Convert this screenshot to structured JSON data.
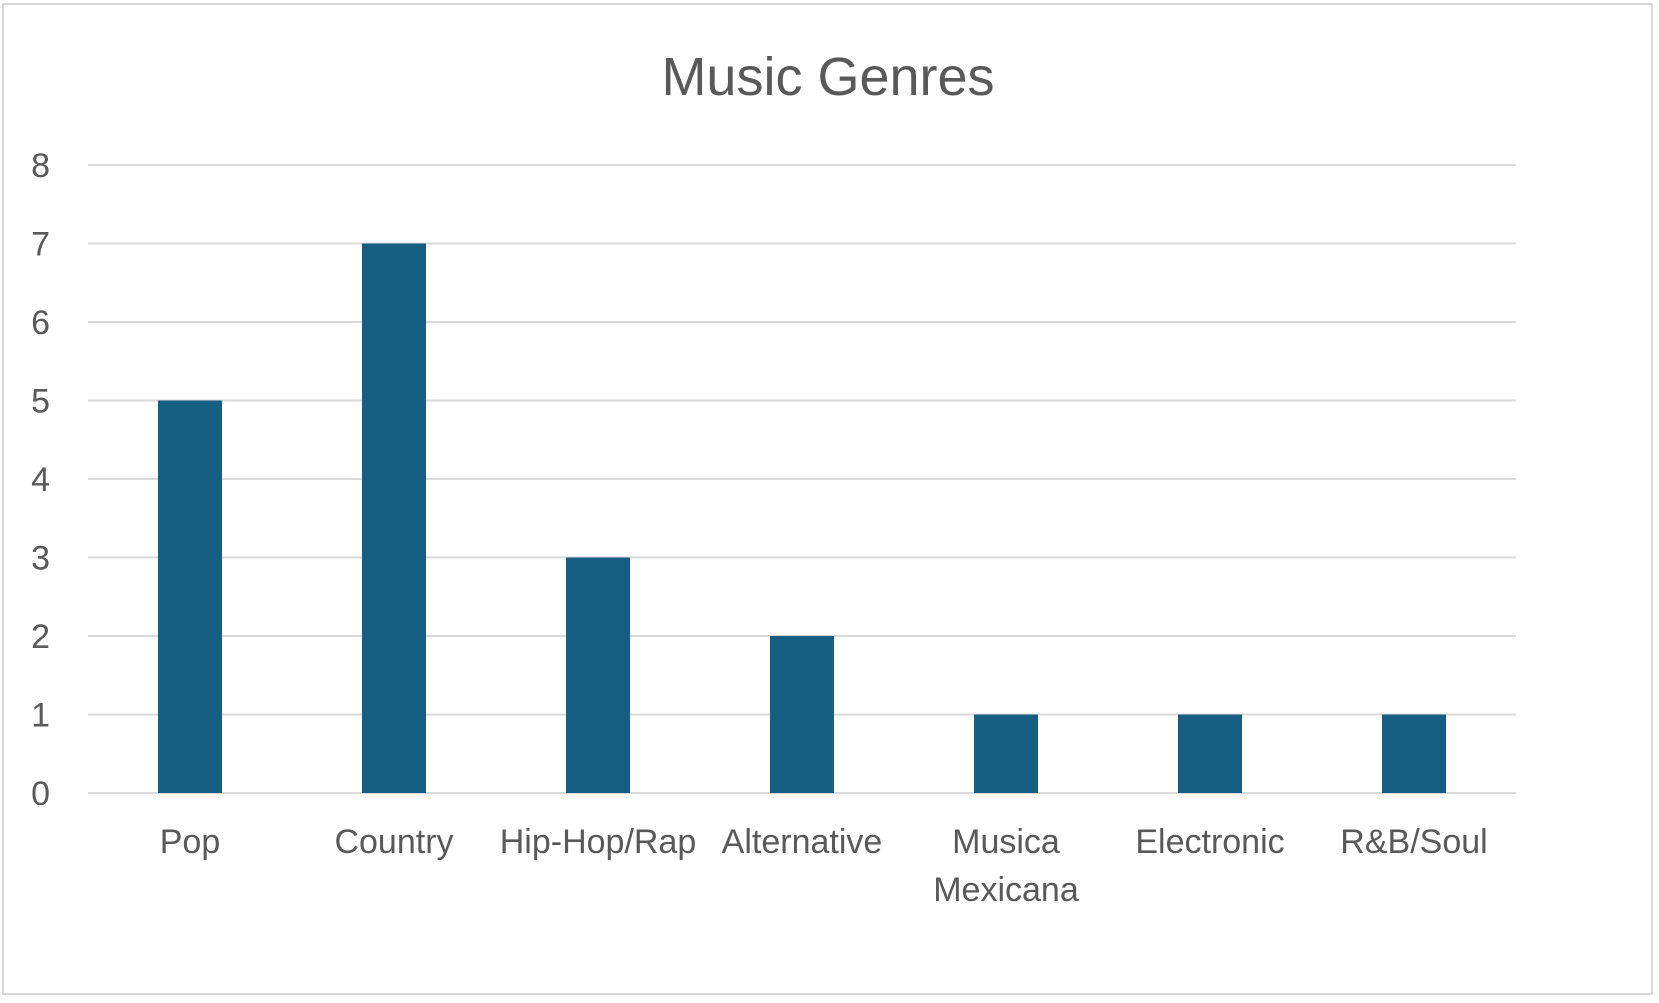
{
  "chart_data": {
    "type": "bar",
    "title": "Music Genres",
    "categories": [
      "Pop",
      "Country",
      "Hip-Hop/Rap",
      "Alternative",
      "Musica Mexicana",
      "Electronic",
      "R&B/Soul"
    ],
    "values": [
      5,
      7,
      3,
      2,
      1,
      1,
      1
    ],
    "xlabel": "",
    "ylabel": "",
    "ylim": [
      0,
      8
    ],
    "yticks": [
      0,
      1,
      2,
      3,
      4,
      5,
      6,
      7,
      8
    ],
    "grid": true,
    "legend": "none",
    "bar_color": "#175f82",
    "gridline_color": "#d9d9d9",
    "text_color": "#595959"
  }
}
